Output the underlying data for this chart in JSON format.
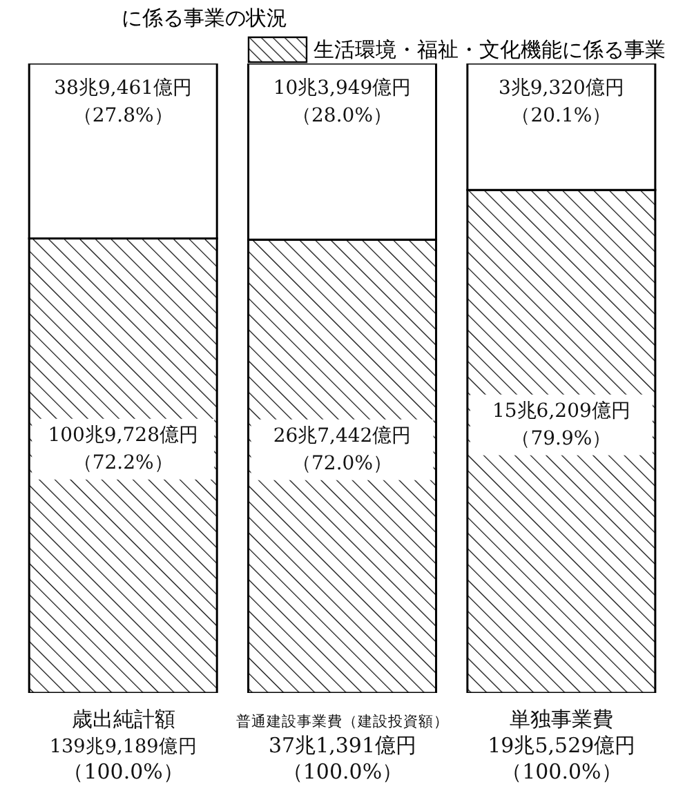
{
  "chart_data": {
    "type": "bar",
    "title": "に係る事業の状況",
    "stacked": true,
    "tick_labels": "x",
    "ylim": [
      0,
      100
    ],
    "legend": "top right",
    "categories": [
      "歳出純計額139兆9,189億円（100.0%）",
      "普通建設事業費（建設投資額）37兆1,391億円（100.0%）",
      "単独事業費19兆5,529億円（100.0%）"
    ],
    "series": [
      {
        "name": "生活環境・福祉・文化機能に係る事業",
        "color": "#000000",
        "values": [
          72.2,
          72.0,
          79.9
        ],
        "value_labels": [
          "100兆9,728億円（72.2%）",
          "26兆7,442億円（72.0%）",
          "15兆6,209億円（79.9%）"
        ]
      },
      {
        "color": "#ffffff",
        "values": [
          27.8,
          28.0,
          20.1
        ],
        "value_labels": [
          "38兆9,461億円（27.8%）",
          "10兆3,949億円（28.0%）",
          "3兆9,320億円（20.1%）"
        ]
      }
    ]
  }
}
